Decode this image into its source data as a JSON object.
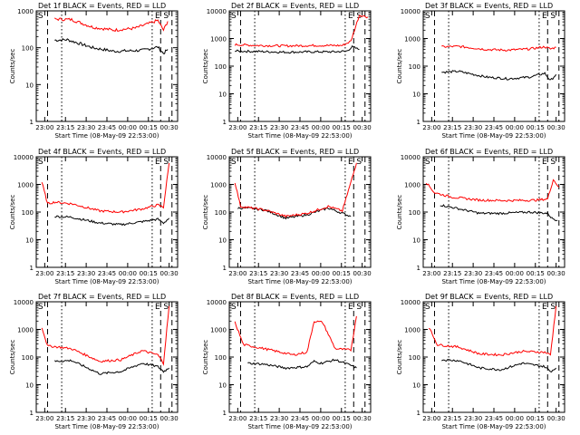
{
  "chart_data": [
    {
      "type": "line",
      "title": "Det 1f BLACK = Events, RED = LLD",
      "xlabel": "Start Time (08-May-09 22:53:00)",
      "ylabel": "Counts/sec",
      "x_ticks": [
        "23:00",
        "23:15",
        "23:30",
        "23:45",
        "00:00",
        "00:15",
        "00:30"
      ],
      "y_ticks": [
        "1",
        "10",
        "100",
        "1000"
      ],
      "ylim": [
        1,
        1000
      ],
      "y_scale": "log",
      "markers": {
        "S_start": "S",
        "E": "E",
        "S_end": "S"
      },
      "series": [
        {
          "name": "BLACK",
          "color": "#000000",
          "values": [
            [
              0.13,
              160
            ],
            [
              0.22,
              165
            ],
            [
              0.4,
              100
            ],
            [
              0.55,
              80
            ],
            [
              0.75,
              85
            ],
            [
              0.86,
              105
            ],
            [
              0.9,
              70
            ],
            [
              0.93,
              90
            ]
          ]
        },
        {
          "name": "RED",
          "color": "#ff0000",
          "values": [
            [
              0.13,
              600
            ],
            [
              0.25,
              580
            ],
            [
              0.4,
              360
            ],
            [
              0.55,
              300
            ],
            [
              0.7,
              340
            ],
            [
              0.86,
              550
            ],
            [
              0.9,
              300
            ],
            [
              0.93,
              520
            ]
          ]
        }
      ]
    },
    {
      "type": "line",
      "title": "Det 2f BLACK = Events, RED = LLD",
      "xlabel": "Start Time (08-May-09 22:53:00)",
      "ylabel": "Counts/sec",
      "x_ticks": [
        "23:00",
        "23:15",
        "23:30",
        "23:45",
        "00:00",
        "00:15",
        "00:30"
      ],
      "y_ticks": [
        "1",
        "10",
        "100",
        "1000",
        "10000"
      ],
      "ylim": [
        1,
        10000
      ],
      "y_scale": "log",
      "markers": {
        "S_start": "S",
        "E": "E",
        "S_end": "S"
      },
      "series": [
        {
          "name": "BLACK",
          "color": "#000000",
          "values": [
            [
              0.04,
              350
            ],
            [
              0.2,
              340
            ],
            [
              0.4,
              320
            ],
            [
              0.6,
              330
            ],
            [
              0.75,
              330
            ],
            [
              0.83,
              350
            ],
            [
              0.87,
              500
            ],
            [
              0.92,
              400
            ]
          ]
        },
        {
          "name": "RED",
          "color": "#ff0000",
          "values": [
            [
              0.04,
              600
            ],
            [
              0.2,
              560
            ],
            [
              0.4,
              540
            ],
            [
              0.6,
              560
            ],
            [
              0.8,
              560
            ],
            [
              0.86,
              800
            ],
            [
              0.92,
              7000
            ],
            [
              0.98,
              6000
            ]
          ]
        }
      ]
    },
    {
      "type": "line",
      "title": "Det 3f BLACK = Events, RED = LLD",
      "xlabel": "Start Time (08-May-09 22:53:00)",
      "ylabel": "Counts/sec",
      "x_ticks": [
        "23:00",
        "23:15",
        "23:30",
        "23:45",
        "00:00",
        "00:15",
        "00:30"
      ],
      "y_ticks": [
        "1",
        "10",
        "100",
        "1000",
        "10000"
      ],
      "ylim": [
        1,
        10000
      ],
      "y_scale": "log",
      "markers": {
        "S_start": "S",
        "E": "E",
        "S_end": "S"
      },
      "series": [
        {
          "name": "BLACK",
          "color": "#000000",
          "values": [
            [
              0.13,
              60
            ],
            [
              0.25,
              65
            ],
            [
              0.45,
              40
            ],
            [
              0.6,
              35
            ],
            [
              0.75,
              40
            ],
            [
              0.86,
              55
            ],
            [
              0.9,
              30
            ],
            [
              0.94,
              50
            ]
          ]
        },
        {
          "name": "RED",
          "color": "#ff0000",
          "values": [
            [
              0.13,
              500
            ],
            [
              0.25,
              520
            ],
            [
              0.45,
              400
            ],
            [
              0.6,
              380
            ],
            [
              0.75,
              420
            ],
            [
              0.86,
              500
            ],
            [
              0.9,
              420
            ],
            [
              0.94,
              480
            ]
          ]
        }
      ]
    },
    {
      "type": "line",
      "title": "Det 4f BLACK = Events, RED = LLD",
      "xlabel": "Start Time (08-May-09 22:53:00)",
      "ylabel": "Counts/sec",
      "x_ticks": [
        "23:00",
        "23:15",
        "23:30",
        "23:45",
        "00:00",
        "00:15",
        "00:30"
      ],
      "y_ticks": [
        "1",
        "10",
        "100",
        "1000",
        "10000"
      ],
      "ylim": [
        1,
        10000
      ],
      "y_scale": "log",
      "markers": {
        "S_start": "S",
        "E": "E",
        "S_end": "S"
      },
      "series": [
        {
          "name": "BLACK",
          "color": "#000000",
          "values": [
            [
              0.13,
              70
            ],
            [
              0.25,
              65
            ],
            [
              0.45,
              40
            ],
            [
              0.6,
              35
            ],
            [
              0.75,
              45
            ],
            [
              0.86,
              55
            ],
            [
              0.9,
              40
            ],
            [
              0.94,
              60
            ]
          ]
        },
        {
          "name": "RED",
          "color": "#ff0000",
          "values": [
            [
              0.04,
              1200
            ],
            [
              0.08,
              200
            ],
            [
              0.13,
              230
            ],
            [
              0.25,
              200
            ],
            [
              0.45,
              110
            ],
            [
              0.6,
              100
            ],
            [
              0.75,
              130
            ],
            [
              0.86,
              180
            ],
            [
              0.9,
              150
            ],
            [
              0.94,
              6000
            ]
          ]
        }
      ]
    },
    {
      "type": "line",
      "title": "Det 5f BLACK = Events, RED = LLD",
      "xlabel": "Start Time (08-May-09 22:53:00)",
      "ylabel": "Counts/sec",
      "x_ticks": [
        "23:00",
        "23:15",
        "23:30",
        "23:45",
        "00:00",
        "00:15",
        "00:30"
      ],
      "y_ticks": [
        "1",
        "10",
        "100",
        "1000",
        "10000"
      ],
      "ylim": [
        1,
        10000
      ],
      "y_scale": "log",
      "markers": {
        "S_start": "S",
        "E": "E",
        "S_end": "S"
      },
      "series": [
        {
          "name": "BLACK",
          "color": "#000000",
          "values": [
            [
              0.06,
              140
            ],
            [
              0.12,
              140
            ],
            [
              0.25,
              120
            ],
            [
              0.4,
              60
            ],
            [
              0.55,
              80
            ],
            [
              0.7,
              140
            ],
            [
              0.8,
              90
            ],
            [
              0.86,
              70
            ]
          ]
        },
        {
          "name": "RED",
          "color": "#ff0000",
          "values": [
            [
              0.04,
              1200
            ],
            [
              0.08,
              160
            ],
            [
              0.25,
              120
            ],
            [
              0.4,
              70
            ],
            [
              0.55,
              90
            ],
            [
              0.7,
              160
            ],
            [
              0.8,
              110
            ],
            [
              0.86,
              1200
            ],
            [
              0.9,
              6000
            ]
          ]
        }
      ]
    },
    {
      "type": "line",
      "title": "Det 6f BLACK = Events, RED = LLD",
      "xlabel": "Start Time (08-May-09 22:53:00)",
      "ylabel": "Counts/sec",
      "x_ticks": [
        "23:00",
        "23:15",
        "23:30",
        "23:45",
        "00:00",
        "00:15",
        "00:30"
      ],
      "y_ticks": [
        "1",
        "10",
        "100",
        "1000",
        "10000"
      ],
      "ylim": [
        1,
        10000
      ],
      "y_scale": "log",
      "markers": {
        "S_start": "S",
        "E": "E",
        "S_end": "S"
      },
      "series": [
        {
          "name": "BLACK",
          "color": "#000000",
          "values": [
            [
              0.12,
              180
            ],
            [
              0.2,
              150
            ],
            [
              0.4,
              90
            ],
            [
              0.55,
              90
            ],
            [
              0.75,
              100
            ],
            [
              0.88,
              90
            ],
            [
              0.91,
              60
            ],
            [
              0.95,
              50
            ]
          ]
        },
        {
          "name": "RED",
          "color": "#ff0000",
          "values": [
            [
              0.02,
              1200
            ],
            [
              0.08,
              500
            ],
            [
              0.2,
              350
            ],
            [
              0.4,
              270
            ],
            [
              0.6,
              260
            ],
            [
              0.8,
              270
            ],
            [
              0.88,
              300
            ],
            [
              0.92,
              1500
            ],
            [
              0.96,
              800
            ]
          ]
        }
      ]
    },
    {
      "type": "line",
      "title": "Det 7f BLACK = Events, RED = LLD",
      "xlabel": "Start Time (08-May-09 22:53:00)",
      "ylabel": "Counts/sec",
      "x_ticks": [
        "23:00",
        "23:15",
        "23:30",
        "23:45",
        "00:00",
        "00:15",
        "00:30"
      ],
      "y_ticks": [
        "1",
        "10",
        "100",
        "1000",
        "10000"
      ],
      "ylim": [
        1,
        10000
      ],
      "y_scale": "log",
      "markers": {
        "S_start": "S",
        "E": "E",
        "S_end": "S"
      },
      "series": [
        {
          "name": "BLACK",
          "color": "#000000",
          "values": [
            [
              0.13,
              70
            ],
            [
              0.25,
              75
            ],
            [
              0.45,
              25
            ],
            [
              0.6,
              30
            ],
            [
              0.75,
              60
            ],
            [
              0.86,
              45
            ],
            [
              0.9,
              30
            ],
            [
              0.94,
              40
            ]
          ]
        },
        {
          "name": "RED",
          "color": "#ff0000",
          "values": [
            [
              0.04,
              1200
            ],
            [
              0.08,
              250
            ],
            [
              0.13,
              240
            ],
            [
              0.25,
              200
            ],
            [
              0.45,
              70
            ],
            [
              0.6,
              80
            ],
            [
              0.75,
              170
            ],
            [
              0.86,
              120
            ],
            [
              0.9,
              60
            ],
            [
              0.94,
              7000
            ]
          ]
        }
      ]
    },
    {
      "type": "line",
      "title": "Det 8f BLACK = Events, RED = LLD",
      "xlabel": "Start Time (08-May-09 22:53:00)",
      "ylabel": "Counts/sec",
      "x_ticks": [
        "23:00",
        "23:15",
        "23:30",
        "23:45",
        "00:00",
        "00:15",
        "00:30"
      ],
      "y_ticks": [
        "1",
        "10",
        "100",
        "1000",
        "10000"
      ],
      "ylim": [
        1,
        10000
      ],
      "y_scale": "log",
      "markers": {
        "S_start": "S",
        "E": "E",
        "S_end": "S"
      },
      "series": [
        {
          "name": "BLACK",
          "color": "#000000",
          "values": [
            [
              0.13,
              60
            ],
            [
              0.25,
              55
            ],
            [
              0.4,
              40
            ],
            [
              0.55,
              45
            ],
            [
              0.6,
              70
            ],
            [
              0.65,
              60
            ],
            [
              0.75,
              80
            ],
            [
              0.86,
              50
            ],
            [
              0.9,
              40
            ]
          ]
        },
        {
          "name": "RED",
          "color": "#ff0000",
          "values": [
            [
              0.04,
              1800
            ],
            [
              0.1,
              280
            ],
            [
              0.25,
              200
            ],
            [
              0.45,
              120
            ],
            [
              0.55,
              150
            ],
            [
              0.6,
              2000
            ],
            [
              0.66,
              1800
            ],
            [
              0.75,
              200
            ],
            [
              0.86,
              180
            ],
            [
              0.9,
              3000
            ]
          ]
        }
      ]
    },
    {
      "type": "line",
      "title": "Det 9f BLACK = Events, RED = LLD",
      "xlabel": "Start Time (08-May-09 22:53:00)",
      "ylabel": "Counts/sec",
      "x_ticks": [
        "23:00",
        "23:15",
        "23:30",
        "23:45",
        "00:00",
        "00:15",
        "00:30"
      ],
      "y_ticks": [
        "1",
        "10",
        "100",
        "1000",
        "10000"
      ],
      "ylim": [
        1,
        10000
      ],
      "y_scale": "log",
      "markers": {
        "S_start": "S",
        "E": "E",
        "S_end": "S"
      },
      "series": [
        {
          "name": "BLACK",
          "color": "#000000",
          "values": [
            [
              0.13,
              80
            ],
            [
              0.25,
              75
            ],
            [
              0.4,
              40
            ],
            [
              0.55,
              35
            ],
            [
              0.7,
              60
            ],
            [
              0.86,
              45
            ],
            [
              0.9,
              30
            ],
            [
              0.94,
              40
            ]
          ]
        },
        {
          "name": "RED",
          "color": "#ff0000",
          "values": [
            [
              0.04,
              1200
            ],
            [
              0.1,
              280
            ],
            [
              0.25,
              230
            ],
            [
              0.4,
              130
            ],
            [
              0.55,
              120
            ],
            [
              0.7,
              160
            ],
            [
              0.86,
              150
            ],
            [
              0.9,
              120
            ],
            [
              0.94,
              7000
            ]
          ]
        }
      ]
    }
  ]
}
